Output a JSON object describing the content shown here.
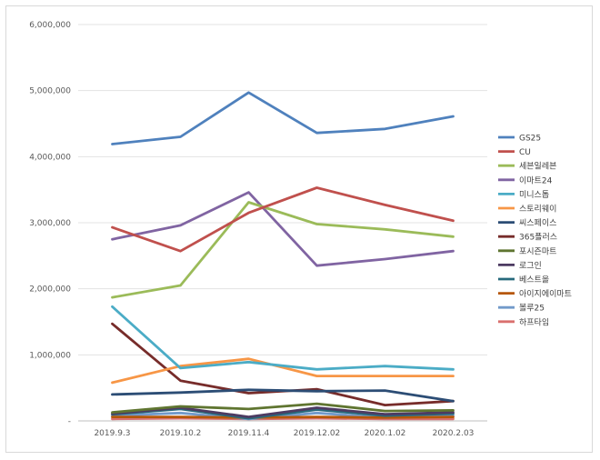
{
  "chart_data": {
    "type": "line",
    "title": "",
    "xlabel": "",
    "ylabel": "",
    "categories": [
      "2019.9.3",
      "2019.10.2",
      "2019.11.4",
      "2019.12.02",
      "2020.1.02",
      "2020.2.03"
    ],
    "ylim": [
      0,
      6000000
    ],
    "yticks": [
      0,
      1000000,
      2000000,
      3000000,
      4000000,
      5000000,
      6000000
    ],
    "ytick_labels": [
      "-",
      "1,000,000",
      "2,000,000",
      "3,000,000",
      "4,000,000",
      "5,000,000",
      "6,000,000"
    ],
    "grid": true,
    "legend_position": "right",
    "series": [
      {
        "name": "GS25",
        "color": "#4f81bd",
        "values": [
          4190000,
          4300000,
          4970000,
          4360000,
          4420000,
          4610000
        ]
      },
      {
        "name": "CU",
        "color": "#c0504d",
        "values": [
          2930000,
          2570000,
          3150000,
          3530000,
          3270000,
          3030000
        ]
      },
      {
        "name": "세븐일레븐",
        "color": "#9bbb59",
        "values": [
          1870000,
          2050000,
          3310000,
          2980000,
          2900000,
          2790000
        ]
      },
      {
        "name": "이마트24",
        "color": "#8064a2",
        "values": [
          2750000,
          2960000,
          3460000,
          2350000,
          2450000,
          2570000
        ]
      },
      {
        "name": "미니스톱",
        "color": "#4bacc6",
        "values": [
          1730000,
          800000,
          890000,
          780000,
          830000,
          780000
        ]
      },
      {
        "name": "스토리웨이",
        "color": "#f79646",
        "values": [
          580000,
          830000,
          940000,
          680000,
          680000,
          680000
        ]
      },
      {
        "name": "씨스페이스",
        "color": "#2c4d75",
        "values": [
          400000,
          430000,
          470000,
          450000,
          460000,
          300000
        ]
      },
      {
        "name": "365플러스",
        "color": "#772c2a",
        "values": [
          1470000,
          610000,
          420000,
          480000,
          240000,
          300000
        ]
      },
      {
        "name": "포시즌마트",
        "color": "#5f7530",
        "values": [
          130000,
          220000,
          180000,
          260000,
          150000,
          160000
        ]
      },
      {
        "name": "로그인",
        "color": "#4d3b62",
        "values": [
          110000,
          200000,
          60000,
          200000,
          100000,
          130000
        ]
      },
      {
        "name": "베스트올",
        "color": "#276a7c",
        "values": [
          100000,
          180000,
          40000,
          170000,
          80000,
          110000
        ]
      },
      {
        "name": "아이지에이마트",
        "color": "#b65708",
        "values": [
          60000,
          60000,
          50000,
          60000,
          50000,
          60000
        ]
      },
      {
        "name": "볼루25",
        "color": "#729aca",
        "values": [
          80000,
          120000,
          30000,
          120000,
          50000,
          80000
        ]
      },
      {
        "name": "하프타임",
        "color": "#d9706e",
        "values": [
          30000,
          40000,
          30000,
          40000,
          30000,
          30000
        ]
      }
    ]
  }
}
